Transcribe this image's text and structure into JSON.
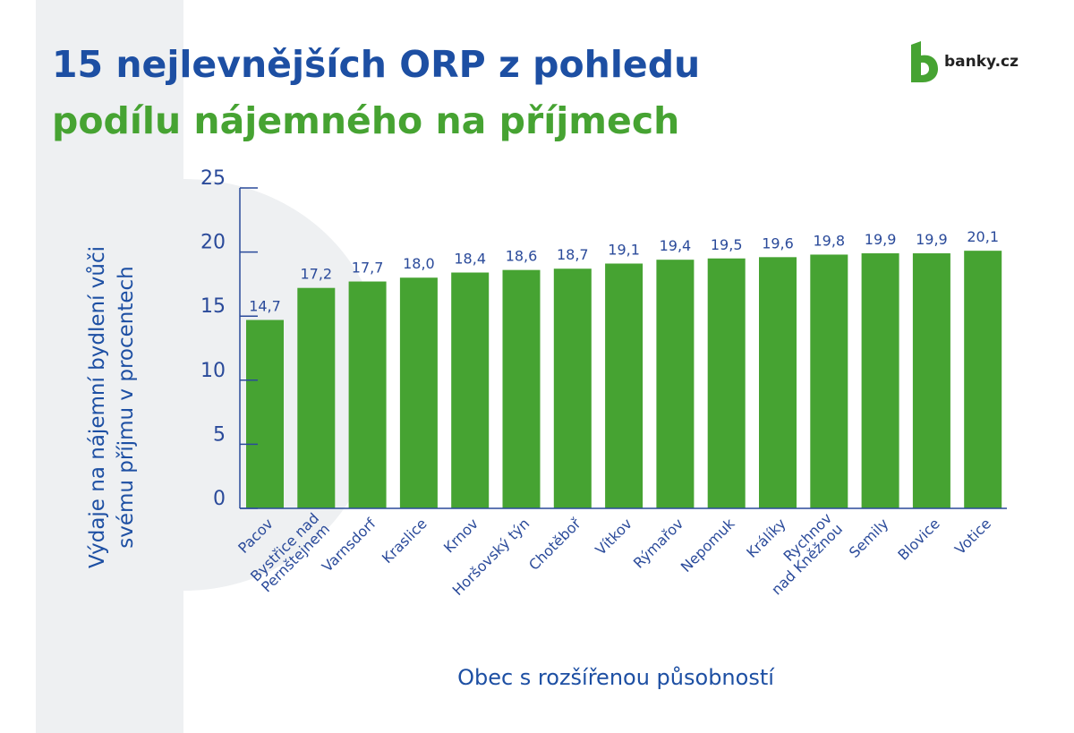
{
  "title_line1": "15 nejlevnějších ORP z pohledu",
  "title_line2": "podílu nájemného na příjmech",
  "logo_text": "banky.cz",
  "colors": {
    "title_blue": "#1d4fa3",
    "title_green": "#46a332",
    "bar": "#46a332",
    "axis": "#2a4a9a",
    "background_mark": "#eef0f2"
  },
  "chart_data": {
    "type": "bar",
    "categories": [
      "Pacov",
      "Bystřice nad\nPernštejnem",
      "Varnsdorf",
      "Kraslice",
      "Krnov",
      "Horšovský týn",
      "Chotěboř",
      "Vítkov",
      "Rýmařov",
      "Nepomuk",
      "Králíky",
      "Rychnov\nnad Kněžnou",
      "Semily",
      "Blovice",
      "Votice"
    ],
    "values": [
      14.7,
      17.2,
      17.7,
      18.0,
      18.4,
      18.6,
      18.7,
      19.1,
      19.4,
      19.5,
      19.6,
      19.8,
      19.9,
      19.9,
      20.1
    ],
    "value_labels": [
      "14,7",
      "17,2",
      "17,7",
      "18,0",
      "18,4",
      "18,6",
      "18,7",
      "19,1",
      "19,4",
      "19,5",
      "19,6",
      "19,8",
      "19,9",
      "19,9",
      "20,1"
    ],
    "yticks": [
      0,
      5,
      10,
      15,
      20,
      25
    ],
    "ylim": [
      0,
      25
    ],
    "ylabel_lines": [
      "Výdaje na nájemní bydlení vůči",
      "svému příjmu v procentech"
    ],
    "xlabel": "Obec s rozšířenou působností",
    "grid": false
  }
}
